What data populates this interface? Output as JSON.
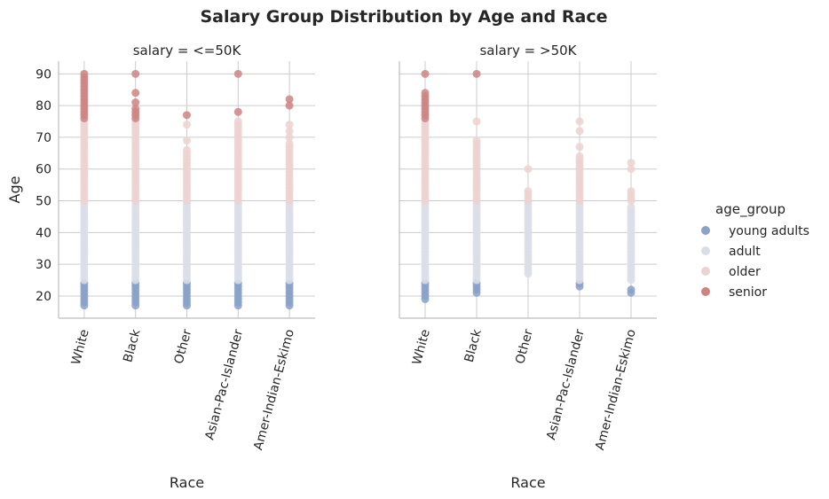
{
  "chart_data": {
    "type": "scatter",
    "title": "Salary Group Distribution by Age and Race",
    "xlabel": "Race",
    "ylabel": "Age",
    "categories": [
      "White",
      "Black",
      "Other",
      "Asian-Pac-Islander",
      "Amer-Indian-Eskimo"
    ],
    "ylim": [
      13,
      94
    ],
    "yticks": [
      20,
      30,
      40,
      50,
      60,
      70,
      80,
      90
    ],
    "grid": true,
    "legend": {
      "title": "age_group",
      "placement": "right",
      "entries": [
        {
          "name": "young adults",
          "color": "#8aa1c8"
        },
        {
          "name": "adult",
          "color": "#dadde8"
        },
        {
          "name": "older",
          "color": "#ecd2d0"
        },
        {
          "name": "senior",
          "color": "#cd8583"
        }
      ]
    },
    "facets": [
      {
        "title": "salary =  <=50K",
        "ranges": {
          "White": {
            "young adults": [
              17,
              24
            ],
            "adult": [
              25,
              49
            ],
            "older": [
              50,
              75
            ],
            "senior": [
              76,
              90
            ]
          },
          "Black": {
            "young adults": [
              17,
              24
            ],
            "adult": [
              25,
              49
            ],
            "older": [
              50,
              75
            ],
            "senior": [
              76,
              79
            ]
          },
          "Other": {
            "young adults": [
              17,
              24
            ],
            "adult": [
              25,
              49
            ],
            "older": [
              50,
              66
            ],
            "senior": []
          },
          "Asian-Pac-Islander": {
            "young adults": [
              17,
              24
            ],
            "adult": [
              25,
              49
            ],
            "older": [
              50,
              75
            ],
            "senior": []
          },
          "Amer-Indian-Eskimo": {
            "young adults": [
              17,
              24
            ],
            "adult": [
              25,
              49
            ],
            "older": [
              50,
              68
            ],
            "senior": []
          }
        },
        "extra_points": {
          "White": {
            "senior": []
          },
          "Black": {
            "senior": [
              81,
              84,
              90
            ]
          },
          "Other": {
            "older": [
              69,
              74
            ],
            "senior": [
              77
            ]
          },
          "Asian-Pac-Islander": {
            "senior": [
              78,
              90
            ]
          },
          "Amer-Indian-Eskimo": {
            "older": [
              70,
              72,
              74
            ],
            "senior": [
              80,
              82
            ]
          }
        }
      },
      {
        "title": "salary =  >50K",
        "ranges": {
          "White": {
            "young adults": [
              19,
              24
            ],
            "adult": [
              25,
              49
            ],
            "older": [
              50,
              75
            ],
            "senior": [
              76,
              84
            ]
          },
          "Black": {
            "young adults": [
              21,
              24
            ],
            "adult": [
              25,
              49
            ],
            "older": [
              50,
              69
            ],
            "senior": []
          },
          "Other": {
            "young adults": [],
            "adult": [
              27,
              49
            ],
            "older": [
              50,
              53
            ],
            "senior": []
          },
          "Asian-Pac-Islander": {
            "young adults": [
              23,
              24
            ],
            "adult": [
              25,
              49
            ],
            "older": [
              50,
              64
            ],
            "senior": []
          },
          "Amer-Indian-Eskimo": {
            "young adults": [
              21,
              22
            ],
            "adult": [
              25,
              48
            ],
            "older": [
              50,
              53
            ],
            "senior": []
          }
        },
        "extra_points": {
          "White": {
            "senior": [
              90
            ]
          },
          "Black": {
            "older": [
              75
            ],
            "senior": [
              90
            ]
          },
          "Other": {
            "older": [
              60
            ]
          },
          "Asian-Pac-Islander": {
            "older": [
              67,
              72,
              75
            ]
          },
          "Amer-Indian-Eskimo": {
            "older": [
              60,
              62
            ]
          }
        }
      }
    ]
  }
}
